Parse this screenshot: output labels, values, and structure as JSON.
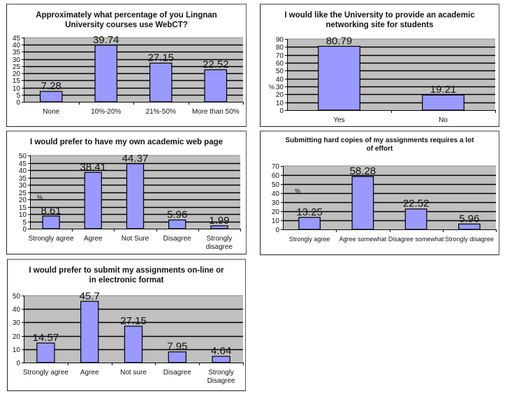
{
  "colors": {
    "plot_bg": "#c0c0c0",
    "bar": "#9999ff",
    "bar_stroke": "#000000",
    "grid": "#000000"
  },
  "chart_data": [
    {
      "type": "bar",
      "title": "Approximately what percentage of you Lingnan University courses use WebCT?",
      "title_lines": [
        "Approximately what percentage of you Lingnan",
        "University courses use WebCT?"
      ],
      "categories": [
        [
          "None"
        ],
        [
          "10%-20%"
        ],
        [
          "21%-50%"
        ],
        [
          "More than 50%"
        ]
      ],
      "values": [
        7.28,
        39.74,
        27.15,
        22.52
      ],
      "data_labels": [
        "7.28",
        "39.74",
        "27.15",
        "22.52"
      ],
      "ylim": [
        0,
        45
      ],
      "ytick_step": 5,
      "yticks": [
        "0",
        "5",
        "10",
        "15",
        "20",
        "25",
        "30",
        "35",
        "40",
        "45"
      ],
      "ylabel": "",
      "xlabel": "",
      "grid": true,
      "legend": "none"
    },
    {
      "type": "bar",
      "title": "I would like the University to provide an academic networking site for students",
      "title_lines": [
        "I would like the University to provide an academic",
        "networking site for students"
      ],
      "categories": [
        [
          "Yes"
        ],
        [
          "No"
        ]
      ],
      "values": [
        80.79,
        19.21
      ],
      "data_labels": [
        "80.79",
        "19.21"
      ],
      "ylim": [
        0,
        90
      ],
      "ytick_step": 10,
      "yticks": [
        "0",
        "10",
        "20",
        "30",
        "40",
        "50",
        "60",
        "70",
        "80",
        "90"
      ],
      "ylabel": "%",
      "xlabel": "",
      "grid": true,
      "legend": "none"
    },
    {
      "type": "bar",
      "title": "I would prefer to have my own academic web page",
      "title_lines": [
        "I would prefer to have my own academic web page"
      ],
      "categories": [
        [
          "Strongly agree"
        ],
        [
          "Agree"
        ],
        [
          "Not Sure"
        ],
        [
          "Disagree"
        ],
        [
          "Strongly",
          "disagree"
        ]
      ],
      "values": [
        8.61,
        38.41,
        44.37,
        5.96,
        1.99
      ],
      "data_labels": [
        "8.61",
        "38.41",
        "44.37",
        "5.96",
        "1.99"
      ],
      "ylim": [
        0,
        50
      ],
      "ytick_step": 5,
      "yticks": [
        "0",
        "5",
        "10",
        "15",
        "20",
        "25",
        "30",
        "35",
        "40",
        "45",
        "50"
      ],
      "ylabel": "%",
      "xlabel": "",
      "grid": true,
      "legend": "none"
    },
    {
      "type": "bar",
      "title": "Submitting hard copies of my assignments requires a lot of effort",
      "title_lines": [
        "Submitting hard copies of my assignments requires a lot",
        "of effort"
      ],
      "categories": [
        [
          "Strongly agree"
        ],
        [
          "Agree somewhat"
        ],
        [
          "Disagree somewhat"
        ],
        [
          "Strongly disagree"
        ]
      ],
      "values": [
        13.25,
        58.28,
        22.52,
        5.96
      ],
      "data_labels": [
        "13.25",
        "58.28",
        "22.52",
        "5.96"
      ],
      "ylim": [
        0,
        70
      ],
      "ytick_step": 10,
      "yticks": [
        "0",
        "10",
        "20",
        "30",
        "40",
        "50",
        "60",
        "70"
      ],
      "ylabel": "%",
      "xlabel": "",
      "grid": true,
      "legend": "none"
    },
    {
      "type": "bar",
      "title": "I would prefer to submit my assignments on-line or in electronic format",
      "title_lines": [
        "I would prefer to submit my assignments on-line or",
        "in electronic format"
      ],
      "categories": [
        [
          "Strongly agree"
        ],
        [
          "Agree"
        ],
        [
          "Not sure"
        ],
        [
          "Disagree"
        ],
        [
          "Strongly",
          "Disagree"
        ]
      ],
      "values": [
        14.57,
        45.7,
        27.15,
        7.95,
        4.64
      ],
      "data_labels": [
        "14.57",
        "45.7",
        "27.15",
        "7.95",
        "4.64"
      ],
      "ylim": [
        0,
        50
      ],
      "ytick_step": 10,
      "yticks": [
        "0",
        "10",
        "20",
        "30",
        "40",
        "50"
      ],
      "ylabel": "",
      "xlabel": "",
      "grid": true,
      "legend": "none"
    }
  ]
}
